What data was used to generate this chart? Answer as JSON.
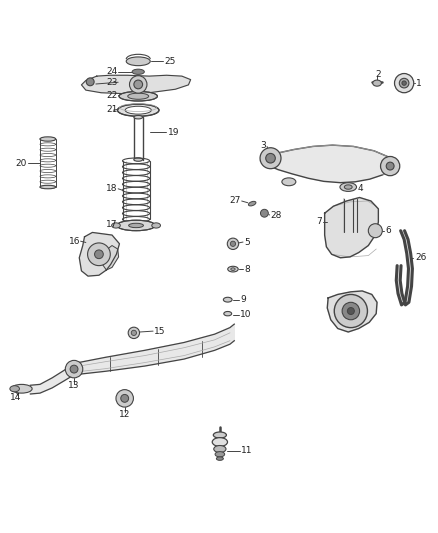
{
  "bg_color": "#ffffff",
  "line_color": "#444444",
  "label_color": "#222222",
  "part_labels": [
    "1",
    "2",
    "3",
    "4",
    "5",
    "6",
    "7",
    "8",
    "9",
    "10",
    "11",
    "12",
    "13",
    "14",
    "15",
    "16",
    "17",
    "18",
    "19",
    "20",
    "21",
    "22",
    "23",
    "24",
    "25",
    "26",
    "27",
    "28"
  ]
}
